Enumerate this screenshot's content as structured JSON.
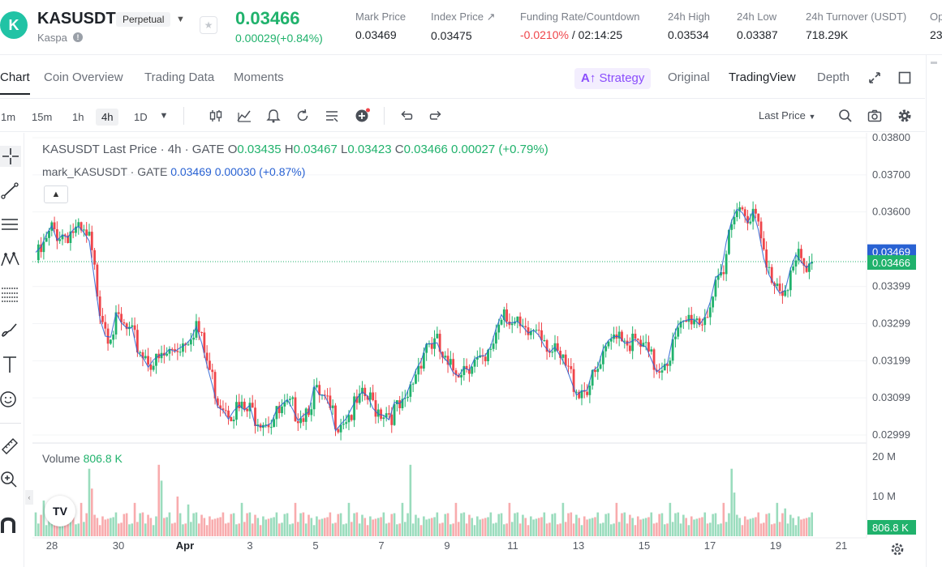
{
  "colors": {
    "up": "#20b26c",
    "down": "#ef454a",
    "mark": "#2962d3",
    "accent": "#8a4dfc"
  },
  "header": {
    "logo_glyph": "K",
    "symbol": "KASUSDT",
    "contract_type": "Perpetual",
    "name": "Kaspa",
    "last_price": "0.03466",
    "change": "0.00029(+0.84%)",
    "stats": [
      {
        "label": "Mark Price",
        "value": "0.03469"
      },
      {
        "label": "Index Price ↗",
        "value": "0.03475"
      },
      {
        "label": "Funding Rate/Countdown",
        "value_red": "-0.0210%",
        "value": "/ 02:14:25"
      },
      {
        "label": "24h High",
        "value": "0.03534"
      },
      {
        "label": "24h Low",
        "value": "0.03387"
      },
      {
        "label": "24h Turnover (USDT)",
        "value": "718.29K"
      },
      {
        "label": "Op",
        "value": "23"
      }
    ]
  },
  "tabs": {
    "items": [
      "Chart",
      "Coin Overview",
      "Trading Data",
      "Moments"
    ],
    "active": "Chart",
    "strategy": "Strategy",
    "views": [
      "Original",
      "TradingView",
      "Depth"
    ],
    "active_view": "TradingView"
  },
  "toolbar": {
    "timeframes": [
      "1m",
      "15m",
      "1h",
      "4h",
      "1D"
    ],
    "active_tf": "4h",
    "price_type": "Last Price"
  },
  "legend": {
    "main_name": "KASUSDT Last Price · 4h · GATE",
    "o_label": "O",
    "o": "0.03435",
    "h_label": "H",
    "h": "0.03467",
    "l_label": "L",
    "l": "0.03423",
    "c_label": "C",
    "c": "0.03466",
    "chg": "0.00027 (+0.79%)",
    "mark_name": "mark_KASUSDT · GATE",
    "mark_val": "0.03469",
    "mark_chg": "0.00030 (+0.87%)",
    "volume_label": "Volume",
    "volume_val": "806.8 K",
    "tv_logo": "TV"
  },
  "chart_data": {
    "type": "candlestick",
    "title": "KASUSDT Last Price · 4h · GATE",
    "y_ticks": [
      "0.03800",
      "0.03700",
      "0.03600",
      "0.03399",
      "0.03299",
      "0.03199",
      "0.03099",
      "0.02999"
    ],
    "y_tick_values": [
      0.038,
      0.037,
      0.036,
      0.03399,
      0.03299,
      0.03199,
      0.03099,
      0.02999
    ],
    "ylim": [
      0.02999,
      0.038
    ],
    "x_ticks": [
      "28",
      "30",
      "Apr",
      "3",
      "5",
      "7",
      "9",
      "11",
      "13",
      "15",
      "17",
      "19",
      "21"
    ],
    "last_price_label": "0.03466",
    "mark_price_label": "0.03469",
    "volume_ticks": [
      "20 M",
      "10 M"
    ],
    "volume_tick_values": [
      20,
      10
    ],
    "volume_last_label": "806.8 K",
    "anchors": [
      [
        0,
        0.0347
      ],
      [
        3,
        0.035
      ],
      [
        6,
        0.0355
      ],
      [
        10,
        0.0354
      ],
      [
        14,
        0.0355
      ],
      [
        20,
        0.0352
      ],
      [
        24,
        0.0335
      ],
      [
        27,
        0.0328
      ],
      [
        31,
        0.033
      ],
      [
        35,
        0.0327
      ],
      [
        40,
        0.0322
      ],
      [
        45,
        0.0319
      ],
      [
        50,
        0.0322
      ],
      [
        55,
        0.0325
      ],
      [
        60,
        0.033
      ],
      [
        63,
        0.0322
      ],
      [
        68,
        0.031
      ],
      [
        73,
        0.0307
      ],
      [
        80,
        0.0306
      ],
      [
        88,
        0.0304
      ],
      [
        95,
        0.0307
      ],
      [
        100,
        0.0306
      ],
      [
        104,
        0.0311
      ],
      [
        108,
        0.0308
      ],
      [
        113,
        0.0304
      ],
      [
        118,
        0.0306
      ],
      [
        123,
        0.031
      ],
      [
        128,
        0.0307
      ],
      [
        133,
        0.0306
      ],
      [
        138,
        0.0307
      ],
      [
        142,
        0.0317
      ],
      [
        146,
        0.0325
      ],
      [
        150,
        0.0324
      ],
      [
        154,
        0.0317
      ],
      [
        158,
        0.0318
      ],
      [
        163,
        0.032
      ],
      [
        168,
        0.0318
      ],
      [
        172,
        0.0328
      ],
      [
        175,
        0.0335
      ],
      [
        178,
        0.033
      ],
      [
        183,
        0.0326
      ],
      [
        188,
        0.033
      ],
      [
        193,
        0.0322
      ],
      [
        198,
        0.0318
      ],
      [
        203,
        0.0312
      ],
      [
        208,
        0.0314
      ],
      [
        213,
        0.0321
      ],
      [
        217,
        0.0329
      ],
      [
        222,
        0.0325
      ],
      [
        227,
        0.0323
      ],
      [
        232,
        0.0318
      ],
      [
        237,
        0.0322
      ],
      [
        241,
        0.0328
      ],
      [
        245,
        0.0332
      ],
      [
        249,
        0.0331
      ],
      [
        253,
        0.0337
      ],
      [
        257,
        0.0342
      ],
      [
        259,
        0.0354
      ],
      [
        261,
        0.0362
      ],
      [
        264,
        0.0361
      ],
      [
        267,
        0.036
      ],
      [
        270,
        0.0356
      ],
      [
        273,
        0.0344
      ],
      [
        276,
        0.0342
      ],
      [
        279,
        0.034
      ],
      [
        282,
        0.0343
      ],
      [
        285,
        0.0347
      ],
      [
        288,
        0.0343
      ],
      [
        290,
        0.03466
      ]
    ],
    "volume_pattern": [
      6,
      2,
      3,
      4,
      1,
      5,
      3,
      2,
      4,
      3,
      6,
      2,
      1,
      5,
      4,
      3,
      2,
      6,
      3,
      4
    ],
    "volume_spikes": {
      "3": 9,
      "20": 17,
      "21": 12,
      "46": 18,
      "47": 14,
      "53": 10,
      "57": 8,
      "140": 18,
      "260": 17,
      "261": 11,
      "280": 7
    }
  }
}
